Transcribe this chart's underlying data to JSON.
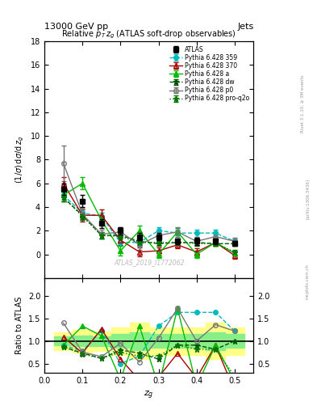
{
  "title_top": "13000 GeV pp",
  "title_right": "Jets",
  "plot_title": "Relative $p_T$ $z_g$ (ATLAS soft-drop observables)",
  "ylabel_main": "(1/σ) dσ/d z_g",
  "ylabel_ratio": "Ratio to ATLAS",
  "xlabel": "$z_g$",
  "watermark": "ATLAS_2019_I1772062",
  "rivet_label": "Rivet 3.1.10, ≥ 3M events",
  "arxiv_label": "[arXiv:1306.3436]",
  "mcplots_label": "mcplots.cern.ch",
  "zg_points": [
    0.05,
    0.1,
    0.15,
    0.2,
    0.25,
    0.3,
    0.35,
    0.4,
    0.45,
    0.5
  ],
  "atlas_y": [
    5.5,
    4.5,
    2.6,
    2.0,
    1.5,
    1.5,
    1.1,
    1.1,
    1.1,
    0.9
  ],
  "atlas_yerr": [
    0.5,
    0.5,
    0.4,
    0.3,
    0.3,
    0.3,
    0.25,
    0.3,
    0.25,
    0.2
  ],
  "p359_y": [
    5.0,
    3.5,
    3.2,
    1.0,
    1.0,
    2.0,
    1.8,
    1.8,
    1.8,
    1.1
  ],
  "p359_yerr": [
    0.3,
    0.3,
    0.3,
    0.3,
    0.3,
    0.3,
    0.3,
    0.3,
    0.3,
    0.2
  ],
  "p370_y": [
    6.0,
    3.3,
    3.3,
    1.2,
    0.2,
    0.3,
    0.8,
    0.2,
    1.0,
    -0.1
  ],
  "p370_yerr": [
    0.5,
    0.5,
    0.5,
    0.4,
    0.4,
    0.3,
    0.3,
    0.3,
    0.3,
    0.3
  ],
  "pa_y": [
    5.0,
    6.0,
    2.9,
    0.3,
    2.0,
    0.0,
    1.9,
    0.0,
    1.0,
    0.1
  ],
  "pa_yerr": [
    0.5,
    0.5,
    0.4,
    0.4,
    0.4,
    0.3,
    0.3,
    0.3,
    0.3,
    0.2
  ],
  "pdw_y": [
    4.8,
    3.3,
    1.6,
    1.6,
    1.1,
    0.9,
    1.0,
    1.0,
    0.9,
    0.9
  ],
  "pdw_yerr": [
    0.3,
    0.3,
    0.3,
    0.2,
    0.2,
    0.2,
    0.2,
    0.2,
    0.2,
    0.2
  ],
  "pp0_y": [
    7.7,
    3.4,
    1.7,
    1.9,
    0.8,
    1.6,
    1.9,
    1.1,
    1.5,
    1.1
  ],
  "pp0_yerr": [
    1.5,
    0.5,
    0.4,
    0.4,
    0.4,
    0.4,
    0.4,
    0.4,
    0.4,
    0.3
  ],
  "pproq_y": [
    4.8,
    3.2,
    1.6,
    1.5,
    1.0,
    1.0,
    1.0,
    0.9,
    0.9,
    0.2
  ],
  "pproq_yerr": [
    0.3,
    0.3,
    0.3,
    0.2,
    0.2,
    0.2,
    0.2,
    0.2,
    0.2,
    0.2
  ],
  "band_yellow_lo": [
    0.8,
    0.75,
    0.78,
    0.7,
    0.6,
    0.7,
    0.7,
    0.7,
    0.6,
    0.7
  ],
  "band_yellow_hi": [
    1.2,
    1.25,
    1.22,
    1.3,
    1.4,
    1.3,
    1.3,
    1.3,
    1.4,
    1.3
  ],
  "band_green_lo": [
    0.9,
    0.88,
    0.89,
    0.85,
    0.8,
    0.85,
    0.85,
    0.85,
    0.8,
    0.85
  ],
  "band_green_hi": [
    1.1,
    1.12,
    1.11,
    1.15,
    1.2,
    1.15,
    1.15,
    1.15,
    1.2,
    1.15
  ],
  "ylim_main": [
    -2,
    18
  ],
  "ylim_ratio": [
    0.3,
    2.4
  ],
  "yticks_main": [
    0,
    2,
    4,
    6,
    8,
    10,
    12,
    14,
    16,
    18
  ],
  "yticks_ratio": [
    0.5,
    1.0,
    1.5,
    2.0
  ],
  "xlim": [
    0.0,
    0.55
  ],
  "color_atlas": "#000000",
  "color_p359": "#00bbbb",
  "color_p370": "#aa0000",
  "color_pa": "#00bb00",
  "color_pdw": "#005500",
  "color_pp0": "#777777",
  "color_pproq": "#007700",
  "legend_labels": [
    "ATLAS",
    "Pythia 6.428 359",
    "Pythia 6.428 370",
    "Pythia 6.428 a",
    "Pythia 6.428 dw",
    "Pythia 6.428 p0",
    "Pythia 6.428 pro-q2o"
  ]
}
